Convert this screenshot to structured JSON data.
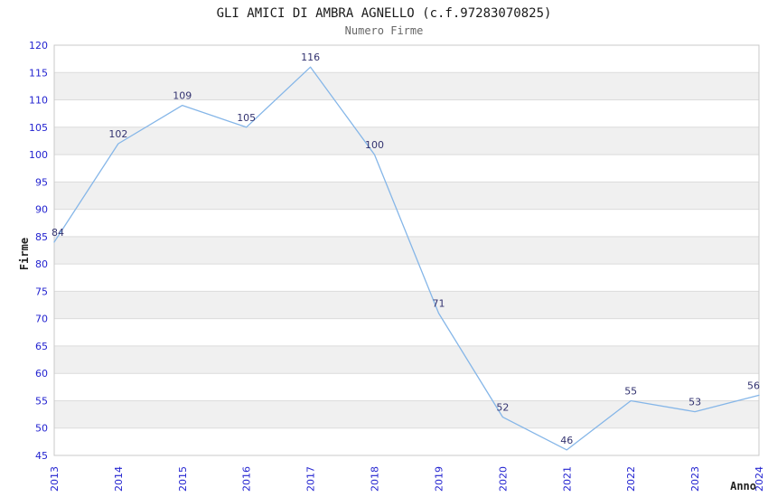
{
  "header": {
    "title": "GLI AMICI DI AMBRA AGNELLO (c.f.97283070825)",
    "subtitle": "Numero Firme"
  },
  "chart_data": {
    "type": "line",
    "title": "GLI AMICI DI AMBRA AGNELLO (c.f.97283070825)",
    "subtitle": "Numero Firme",
    "xlabel": "Anno",
    "ylabel": "Firme",
    "categories": [
      "2013",
      "2014",
      "2015",
      "2016",
      "2017",
      "2018",
      "2019",
      "2020",
      "2021",
      "2022",
      "2023",
      "2024"
    ],
    "values": [
      84,
      102,
      109,
      105,
      116,
      100,
      71,
      52,
      46,
      55,
      53,
      56
    ],
    "ylim": [
      45,
      120
    ],
    "ytick_step": 5,
    "grid": true,
    "band_alternate": true,
    "legend": "none",
    "point_labels_visible": true,
    "colors": {
      "line": "#85b6e8",
      "tick_label": "#2323d0",
      "point_label": "#333370",
      "band": "#f0f0f0",
      "grid": "#dcdcdc",
      "border": "#c9c9c9",
      "title": "#1a1a1a",
      "subtitle": "#666666",
      "axis_title": "#222222",
      "background": "#ffffff"
    }
  }
}
